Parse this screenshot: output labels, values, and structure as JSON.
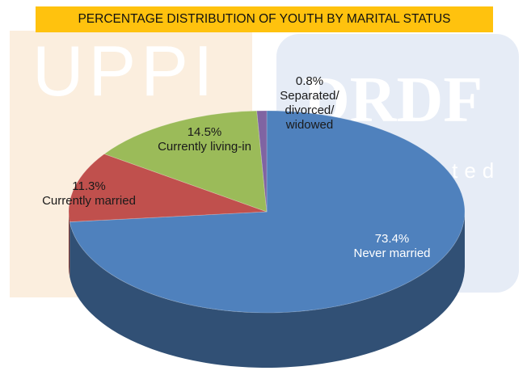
{
  "chart_data": {
    "type": "pie",
    "title": "PERCENTAGE DISTRIBUTION OF YOUTH BY MARITAL STATUS",
    "categories": [
      "Never married",
      "Currently married",
      "Currently living-in",
      "Separated/\ndivorced/\nwidowed"
    ],
    "values": [
      73.4,
      11.3,
      14.5,
      0.8
    ],
    "value_labels": [
      "73.4%",
      "11.3%",
      "14.5%",
      "0.8%"
    ],
    "colors": [
      "#4f81bd",
      "#c0504d",
      "#9bbb59",
      "#8064a2"
    ],
    "watermarks": [
      "UPPI",
      "DRDF",
      "rated"
    ]
  }
}
